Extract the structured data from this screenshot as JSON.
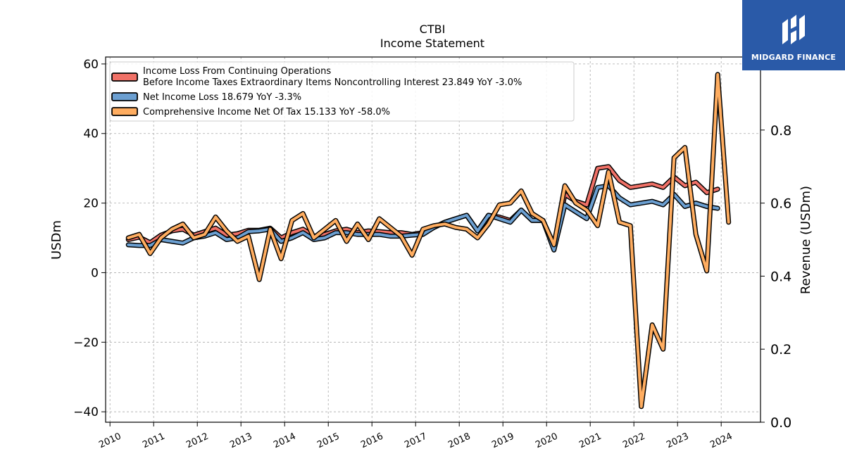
{
  "brand": {
    "name": "MIDGARD FINANCE",
    "color": "#2a5aa8"
  },
  "chart_data": {
    "type": "line",
    "title": "CTBI",
    "subtitle": "Income Statement",
    "ylabel": "USDm",
    "y2label": "Revenue (USDm)",
    "ylim": [
      -43,
      62
    ],
    "y2lim": [
      0.0,
      1.0
    ],
    "yticks": [
      -40,
      -20,
      0,
      20,
      40,
      60
    ],
    "y2ticks": [
      "0.0",
      "0.2",
      "0.4",
      "0.6",
      "0.8"
    ],
    "xlim": [
      2009.9,
      2024.9
    ],
    "xticks": [
      "2010",
      "2011",
      "2012",
      "2013",
      "2014",
      "2015",
      "2016",
      "2017",
      "2018",
      "2019",
      "2020",
      "2021",
      "2022",
      "2023",
      "2024"
    ],
    "grid": true,
    "legend_position": "top-left",
    "series": [
      {
        "name": "Income Loss From Continuing Operations\nBefore Income Taxes Extraordinary Items Noncontrolling Interest  23.849 YoY -3.0%",
        "color": "#f07167",
        "values": [
          9.5,
          10.2,
          8.6,
          10.8,
          12.0,
          12.5,
          10.8,
          11.8,
          12.8,
          10.8,
          11.2,
          12.2,
          12.2,
          12.8,
          10.0,
          11.5,
          12.5,
          10.5,
          11.0,
          12.0,
          12.5,
          11.5,
          12.0,
          11.8,
          11.5,
          11.5,
          11.0,
          11.5,
          13.0,
          14.5,
          15.5,
          16.5,
          12.0,
          16.5,
          16.0,
          15.0,
          18.0,
          15.0,
          15.0,
          7.0,
          22.5,
          20.5,
          19.5,
          30.0,
          30.5,
          26.5,
          24.5,
          25.0,
          25.5,
          24.5,
          27.5,
          25.0,
          26.0,
          23.0,
          24.0
        ]
      },
      {
        "name": "Net Income Loss  18.679 YoY -3.3%",
        "color": "#6b9fd1",
        "values": [
          8.0,
          7.8,
          7.8,
          9.5,
          9.0,
          8.5,
          10.0,
          10.5,
          11.5,
          9.5,
          10.0,
          11.8,
          12.0,
          12.5,
          9.0,
          10.0,
          11.5,
          9.5,
          10.0,
          11.5,
          11.5,
          11.0,
          11.0,
          11.0,
          10.5,
          10.5,
          10.8,
          11.0,
          13.0,
          14.5,
          15.5,
          16.5,
          12.0,
          16.5,
          15.5,
          14.5,
          18.0,
          15.0,
          15.0,
          6.5,
          19.5,
          17.5,
          15.5,
          24.5,
          25.0,
          21.5,
          19.5,
          20.0,
          20.5,
          19.5,
          22.5,
          19.0,
          20.0,
          19.0,
          18.5
        ]
      },
      {
        "name": "Comprehensive Income Net Of Tax  15.133 YoY -58.0%",
        "color": "#ffad60",
        "values": [
          10.0,
          11.0,
          5.5,
          10.0,
          12.5,
          14.0,
          10.0,
          11.0,
          16.0,
          12.0,
          9.0,
          10.5,
          -2.0,
          12.5,
          4.0,
          15.0,
          17.0,
          10.0,
          12.5,
          15.0,
          9.0,
          14.0,
          9.5,
          15.5,
          13.0,
          10.5,
          5.0,
          12.5,
          13.5,
          14.0,
          13.0,
          12.5,
          10.0,
          14.0,
          19.5,
          20.0,
          23.5,
          17.0,
          15.0,
          8.0,
          25.0,
          20.0,
          18.0,
          13.5,
          29.0,
          14.5,
          13.5,
          -38.5,
          -15.0,
          -22.0,
          33.0,
          36.0,
          11.0,
          0.5,
          57.0,
          14.5
        ]
      }
    ]
  }
}
